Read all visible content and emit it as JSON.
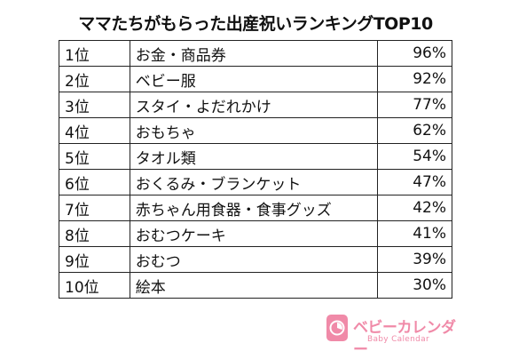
{
  "chart_data": {
    "type": "table",
    "title": "ママたちがもらった出産祝いランキングTOP10",
    "rows": [
      {
        "rank": "1位",
        "item": "お金・商品券",
        "percent": "96%"
      },
      {
        "rank": "2位",
        "item": "ベビー服",
        "percent": "92%"
      },
      {
        "rank": "3位",
        "item": "スタイ・よだれかけ",
        "percent": "77%"
      },
      {
        "rank": "4位",
        "item": "おもちゃ",
        "percent": "62%"
      },
      {
        "rank": "5位",
        "item": "タオル類",
        "percent": "54%"
      },
      {
        "rank": "6位",
        "item": "おくるみ・ブランケット",
        "percent": "47%"
      },
      {
        "rank": "7位",
        "item": "赤ちゃん用食器・食事グッズ",
        "percent": "42%"
      },
      {
        "rank": "8位",
        "item": "おむつケーキ",
        "percent": "41%"
      },
      {
        "rank": "9位",
        "item": "おむつ",
        "percent": "39%"
      },
      {
        "rank": "10位",
        "item": "絵本",
        "percent": "30%"
      }
    ]
  },
  "logo": {
    "name": "ベビーカレンダー",
    "subtitle": "Baby Calendar",
    "color": "#f08aa8",
    "icon": "baby-calendar-logo-icon"
  }
}
